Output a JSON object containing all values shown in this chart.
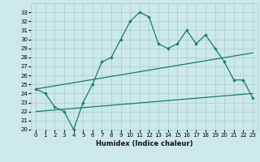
{
  "xlabel": "Humidex (Indice chaleur)",
  "x": [
    0,
    1,
    2,
    3,
    4,
    5,
    6,
    7,
    8,
    9,
    10,
    11,
    12,
    13,
    14,
    15,
    16,
    17,
    18,
    19,
    20,
    21,
    22,
    23
  ],
  "line_main": [
    24.5,
    24.0,
    22.5,
    22.0,
    20.0,
    23.0,
    25.0,
    27.5,
    28.0,
    30.0,
    32.0,
    33.0,
    32.5,
    29.5,
    29.0,
    29.5,
    31.0,
    29.5,
    30.5,
    29.0,
    27.5,
    25.5,
    25.5,
    23.5
  ],
  "trend1_x": [
    0,
    23
  ],
  "trend1_y": [
    24.5,
    28.5
  ],
  "trend2_x": [
    0,
    23
  ],
  "trend2_y": [
    22.0,
    24.0
  ],
  "ylim": [
    20,
    34
  ],
  "xlim": [
    -0.5,
    23.5
  ],
  "yticks": [
    20,
    21,
    22,
    23,
    24,
    25,
    26,
    27,
    28,
    29,
    30,
    31,
    32,
    33
  ],
  "xticks": [
    0,
    1,
    2,
    3,
    4,
    5,
    6,
    7,
    8,
    9,
    10,
    11,
    12,
    13,
    14,
    15,
    16,
    17,
    18,
    19,
    20,
    21,
    22,
    23
  ],
  "line_color": "#1a7a6e",
  "bg_color": "#cce8e8",
  "grid_color": "#aacccc"
}
